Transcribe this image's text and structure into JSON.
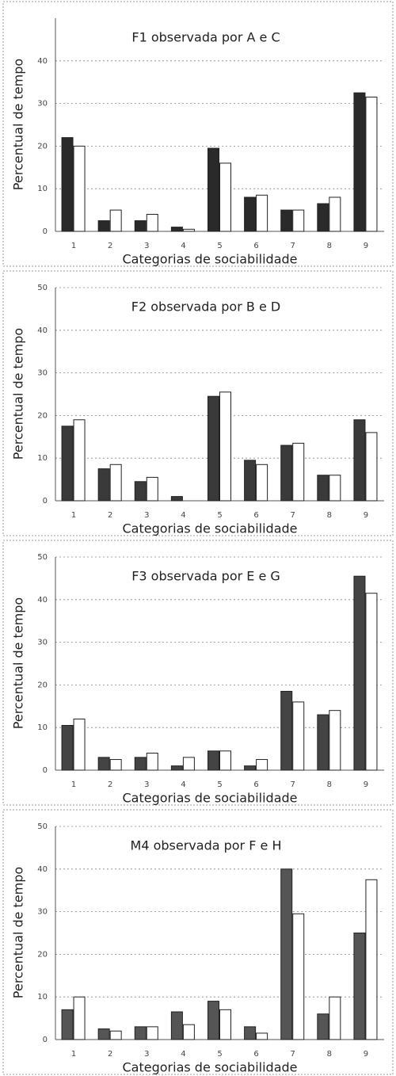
{
  "chart_data": [
    {
      "type": "bar",
      "title": "F1 observada por A e C",
      "xlabel": "Categorias de sociabilidade",
      "ylabel": "Percentual de tempo",
      "categories": [
        "1",
        "2",
        "3",
        "4",
        "5",
        "6",
        "7",
        "8",
        "9"
      ],
      "series": [
        {
          "color": "#2a2a2a",
          "values": [
            22,
            2.5,
            2.5,
            1,
            19.5,
            8,
            5,
            6.5,
            32.5
          ]
        },
        {
          "color": "#ffffff",
          "values": [
            20,
            5,
            4,
            0.5,
            16,
            8.5,
            5,
            8,
            31.5
          ]
        }
      ],
      "ylim": [
        0,
        50
      ],
      "yticks": [
        0,
        10,
        20,
        30,
        40
      ],
      "grid": true
    },
    {
      "type": "bar",
      "title": "F2 observada por B e D",
      "xlabel": "Categorias de sociabilidade",
      "ylabel": "Percentual de tempo",
      "categories": [
        "1",
        "2",
        "3",
        "4",
        "5",
        "6",
        "7",
        "8",
        "9"
      ],
      "series": [
        {
          "color": "#3a3a3a",
          "values": [
            17.5,
            7.5,
            4.5,
            1,
            24.5,
            9.5,
            13,
            6,
            19
          ]
        },
        {
          "color": "#ffffff",
          "values": [
            19,
            8.5,
            5.5,
            0,
            25.5,
            8.5,
            13.5,
            6,
            16
          ]
        }
      ],
      "ylim": [
        0,
        50
      ],
      "yticks": [
        0,
        10,
        20,
        30,
        40,
        50
      ],
      "grid": true
    },
    {
      "type": "bar",
      "title": "F3 observada por E e G",
      "xlabel": "Categorias de sociabilidade",
      "ylabel": "Percentual de tempo",
      "categories": [
        "1",
        "2",
        "3",
        "4",
        "5",
        "6",
        "7",
        "8",
        "9"
      ],
      "series": [
        {
          "color": "#444444",
          "values": [
            10.5,
            3,
            3,
            1,
            4.5,
            1,
            18.5,
            13,
            45.5
          ]
        },
        {
          "color": "#ffffff",
          "values": [
            12,
            2.5,
            4,
            3,
            4.5,
            2.5,
            16,
            14,
            41.5
          ]
        }
      ],
      "ylim": [
        0,
        50
      ],
      "yticks": [
        0,
        10,
        20,
        30,
        40,
        50
      ],
      "grid": true
    },
    {
      "type": "bar",
      "title": "M4 observada por F e H",
      "xlabel": "Categorias de sociabilidade",
      "ylabel": "Percentual de tempo",
      "categories": [
        "1",
        "2",
        "3",
        "4",
        "5",
        "6",
        "7",
        "8",
        "9"
      ],
      "series": [
        {
          "color": "#555555",
          "values": [
            7,
            2.5,
            3,
            6.5,
            9,
            3,
            40,
            6,
            25
          ]
        },
        {
          "color": "#ffffff",
          "values": [
            10,
            2,
            3,
            3.5,
            7,
            1.5,
            29.5,
            10,
            37.5
          ]
        }
      ],
      "ylim": [
        0,
        50
      ],
      "yticks": [
        0,
        10,
        20,
        30,
        40,
        50
      ],
      "grid": true
    }
  ]
}
